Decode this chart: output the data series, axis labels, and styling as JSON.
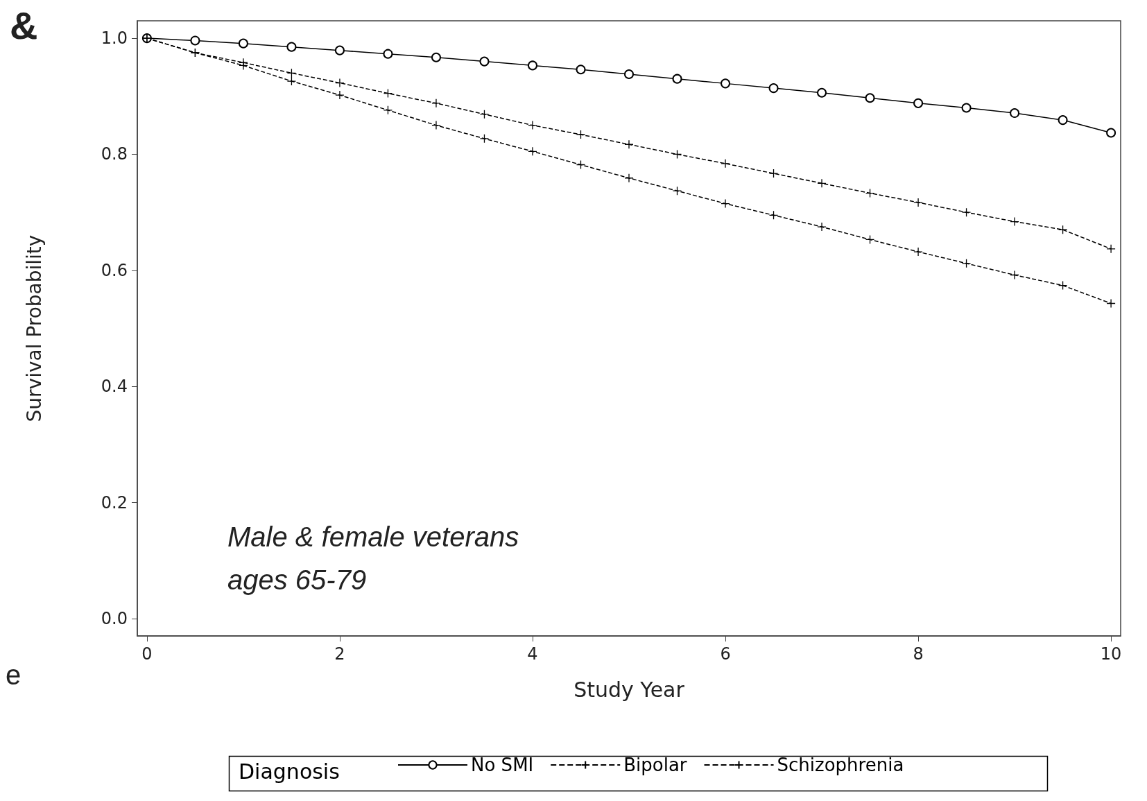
{
  "chart_data": {
    "type": "line",
    "xlabel": "Study Year",
    "ylabel": "Survival Probability",
    "legend_title": "Diagnosis",
    "legend": "bottom",
    "grid": false,
    "x": [
      0,
      0.5,
      1,
      1.5,
      2,
      2.5,
      3,
      3.5,
      4,
      4.5,
      5,
      5.5,
      6,
      6.5,
      7,
      7.5,
      8,
      8.5,
      9,
      9.5,
      10
    ],
    "series": [
      {
        "name": "No SMI",
        "color": "#000000",
        "marker": "circle",
        "line_style": "solid",
        "values": [
          1.0,
          0.996,
          0.991,
          0.985,
          0.979,
          0.973,
          0.967,
          0.96,
          0.953,
          0.946,
          0.938,
          0.93,
          0.922,
          0.914,
          0.906,
          0.897,
          0.888,
          0.88,
          0.871,
          0.859,
          0.837
        ]
      },
      {
        "name": "Bipolar",
        "color": "#000000",
        "marker": "cross",
        "line_style": "dashed",
        "values": [
          1.0,
          0.975,
          0.958,
          0.94,
          0.923,
          0.905,
          0.888,
          0.869,
          0.85,
          0.834,
          0.817,
          0.8,
          0.784,
          0.767,
          0.75,
          0.733,
          0.717,
          0.7,
          0.684,
          0.67,
          0.637
        ]
      },
      {
        "name": "Schizophrenia",
        "color": "#000000",
        "marker": "cross",
        "line_style": "dashed",
        "values": [
          1.0,
          0.975,
          0.953,
          0.926,
          0.902,
          0.876,
          0.85,
          0.827,
          0.805,
          0.782,
          0.759,
          0.737,
          0.715,
          0.695,
          0.675,
          0.653,
          0.632,
          0.612,
          0.592,
          0.574,
          0.543
        ]
      }
    ],
    "xlim": [
      -0.1,
      10.1
    ],
    "xticks": [
      0,
      2,
      4,
      6,
      8,
      10
    ],
    "ylim": [
      -0.03,
      1.03
    ],
    "yticks": [
      {
        "value": 0,
        "label": "0.0"
      },
      {
        "value": 0.2,
        "label": "0.2"
      },
      {
        "value": 0.4,
        "label": "0.4"
      },
      {
        "value": 0.6,
        "label": "0.6"
      },
      {
        "value": 0.8,
        "label": "0.8"
      },
      {
        "value": 1,
        "label": "1.0"
      }
    ],
    "annotations": [
      "Male & female veterans\nages 65-79",
      "&",
      "e"
    ]
  }
}
